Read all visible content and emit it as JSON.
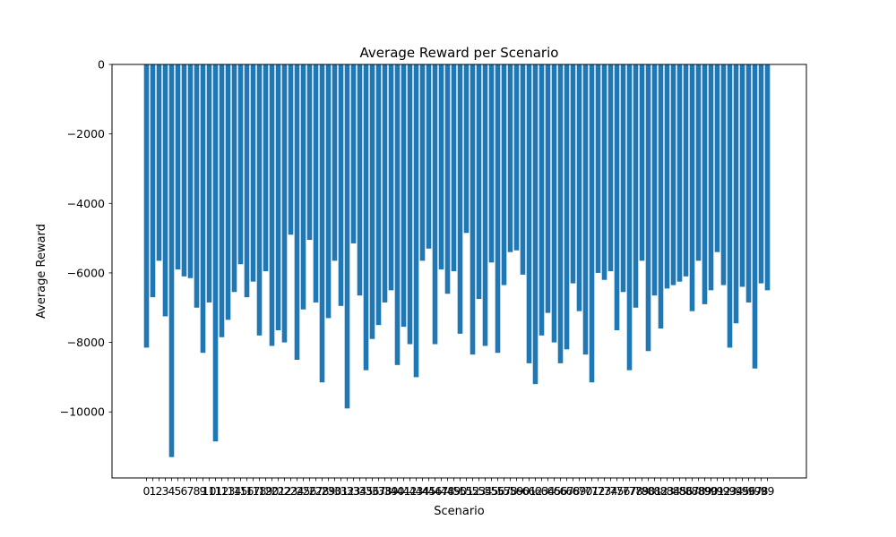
{
  "chart_data": {
    "type": "bar",
    "title": "Average Reward per Scenario",
    "xlabel": "Scenario",
    "ylabel": "Average Reward",
    "ylim": [
      -11900,
      0
    ],
    "yticks": [
      0,
      -2000,
      -4000,
      -6000,
      -8000,
      -10000
    ],
    "ytick_labels": [
      "0",
      "−2000",
      "−4000",
      "−6000",
      "−8000",
      "−10000"
    ],
    "grid": false,
    "bar_color": "#1f77b4",
    "categories": [
      "0",
      "1",
      "2",
      "3",
      "4",
      "5",
      "6",
      "7",
      "8",
      "9",
      "10",
      "11",
      "12",
      "13",
      "14",
      "15",
      "16",
      "17",
      "18",
      "19",
      "20",
      "21",
      "22",
      "23",
      "24",
      "25",
      "26",
      "27",
      "28",
      "29",
      "30",
      "31",
      "32",
      "33",
      "34",
      "35",
      "36",
      "37",
      "38",
      "39",
      "40",
      "41",
      "42",
      "43",
      "44",
      "45",
      "46",
      "47",
      "48",
      "49",
      "50",
      "51",
      "52",
      "53",
      "54",
      "55",
      "56",
      "57",
      "58",
      "59",
      "60",
      "61",
      "62",
      "63",
      "64",
      "65",
      "66",
      "67",
      "68",
      "69",
      "70",
      "71",
      "72",
      "73",
      "74",
      "75",
      "76",
      "77",
      "78",
      "79",
      "80",
      "81",
      "82",
      "83",
      "84",
      "85",
      "86",
      "87",
      "88",
      "89",
      "90",
      "91",
      "92",
      "93",
      "94",
      "95",
      "96",
      "97",
      "98",
      "99"
    ],
    "values": [
      -8150,
      -6700,
      -5650,
      -7250,
      -11300,
      -5900,
      -6100,
      -6150,
      -7000,
      -8300,
      -6850,
      -10850,
      -7850,
      -7350,
      -6550,
      -5750,
      -6700,
      -6250,
      -7800,
      -5950,
      -8100,
      -7650,
      -8000,
      -4900,
      -8500,
      -7050,
      -5050,
      -6850,
      -9150,
      -7300,
      -5650,
      -6950,
      -9900,
      -5150,
      -6650,
      -8800,
      -7900,
      -7500,
      -6850,
      -6500,
      -8650,
      -7550,
      -8050,
      -9000,
      -5650,
      -5300,
      -8050,
      -5900,
      -6600,
      -5950,
      -7750,
      -4850,
      -8350,
      -6750,
      -8100,
      -5700,
      -8300,
      -6350,
      -5400,
      -5350,
      -6050,
      -8600,
      -9200,
      -7800,
      -7150,
      -8000,
      -8600,
      -8200,
      -6300,
      -7100,
      -8350,
      -9150,
      -6000,
      -6200,
      -5950,
      -7650,
      -6550,
      -8800,
      -7000,
      -5650,
      -8250,
      -6650,
      -7600,
      -6450,
      -6350,
      -6250,
      -6100,
      -7100,
      -5650,
      -6900,
      -6500,
      -5400,
      -6350,
      -8150,
      -7450,
      -6400,
      -6850,
      -8750,
      -6300,
      -6500
    ]
  }
}
